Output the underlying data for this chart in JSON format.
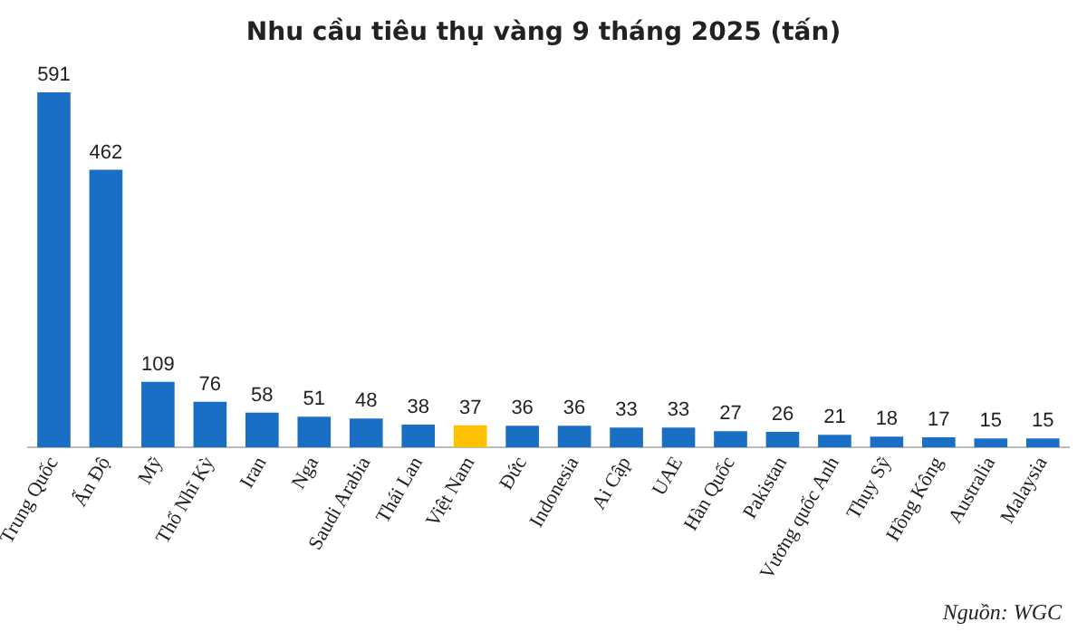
{
  "chart_data": {
    "type": "bar",
    "title": "Nhu cầu tiêu thụ vàng 9 tháng 2025 (tấn)",
    "categories": [
      "Trung Quốc",
      "Ấn Độ",
      "Mỹ",
      "Thổ Nhĩ Kỳ",
      "Iran",
      "Nga",
      "Saudi Arabia",
      "Thái Lan",
      "Việt Nam",
      "Đức",
      "Indonesia",
      "Ai Cập",
      "UAE",
      "Hàn Quốc",
      "Pakistan",
      "Vương quốc Anh",
      "Thụy Sỹ",
      "Hồng Kông",
      "Australia",
      "Malaysia"
    ],
    "values": [
      591,
      462,
      109,
      76,
      58,
      51,
      48,
      38,
      37,
      36,
      36,
      33,
      33,
      27,
      26,
      21,
      18,
      17,
      15,
      15
    ],
    "colors": [
      "#1a6fc4",
      "#1a6fc4",
      "#1a6fc4",
      "#1a6fc4",
      "#1a6fc4",
      "#1a6fc4",
      "#1a6fc4",
      "#1a6fc4",
      "#ffc000",
      "#1a6fc4",
      "#1a6fc4",
      "#1a6fc4",
      "#1a6fc4",
      "#1a6fc4",
      "#1a6fc4",
      "#1a6fc4",
      "#1a6fc4",
      "#1a6fc4",
      "#1a6fc4",
      "#1a6fc4"
    ],
    "ylim": [
      0,
      600
    ],
    "data_labels": true,
    "grid": false,
    "legend": false,
    "annotations": [
      "Nguồn: WGC"
    ]
  }
}
